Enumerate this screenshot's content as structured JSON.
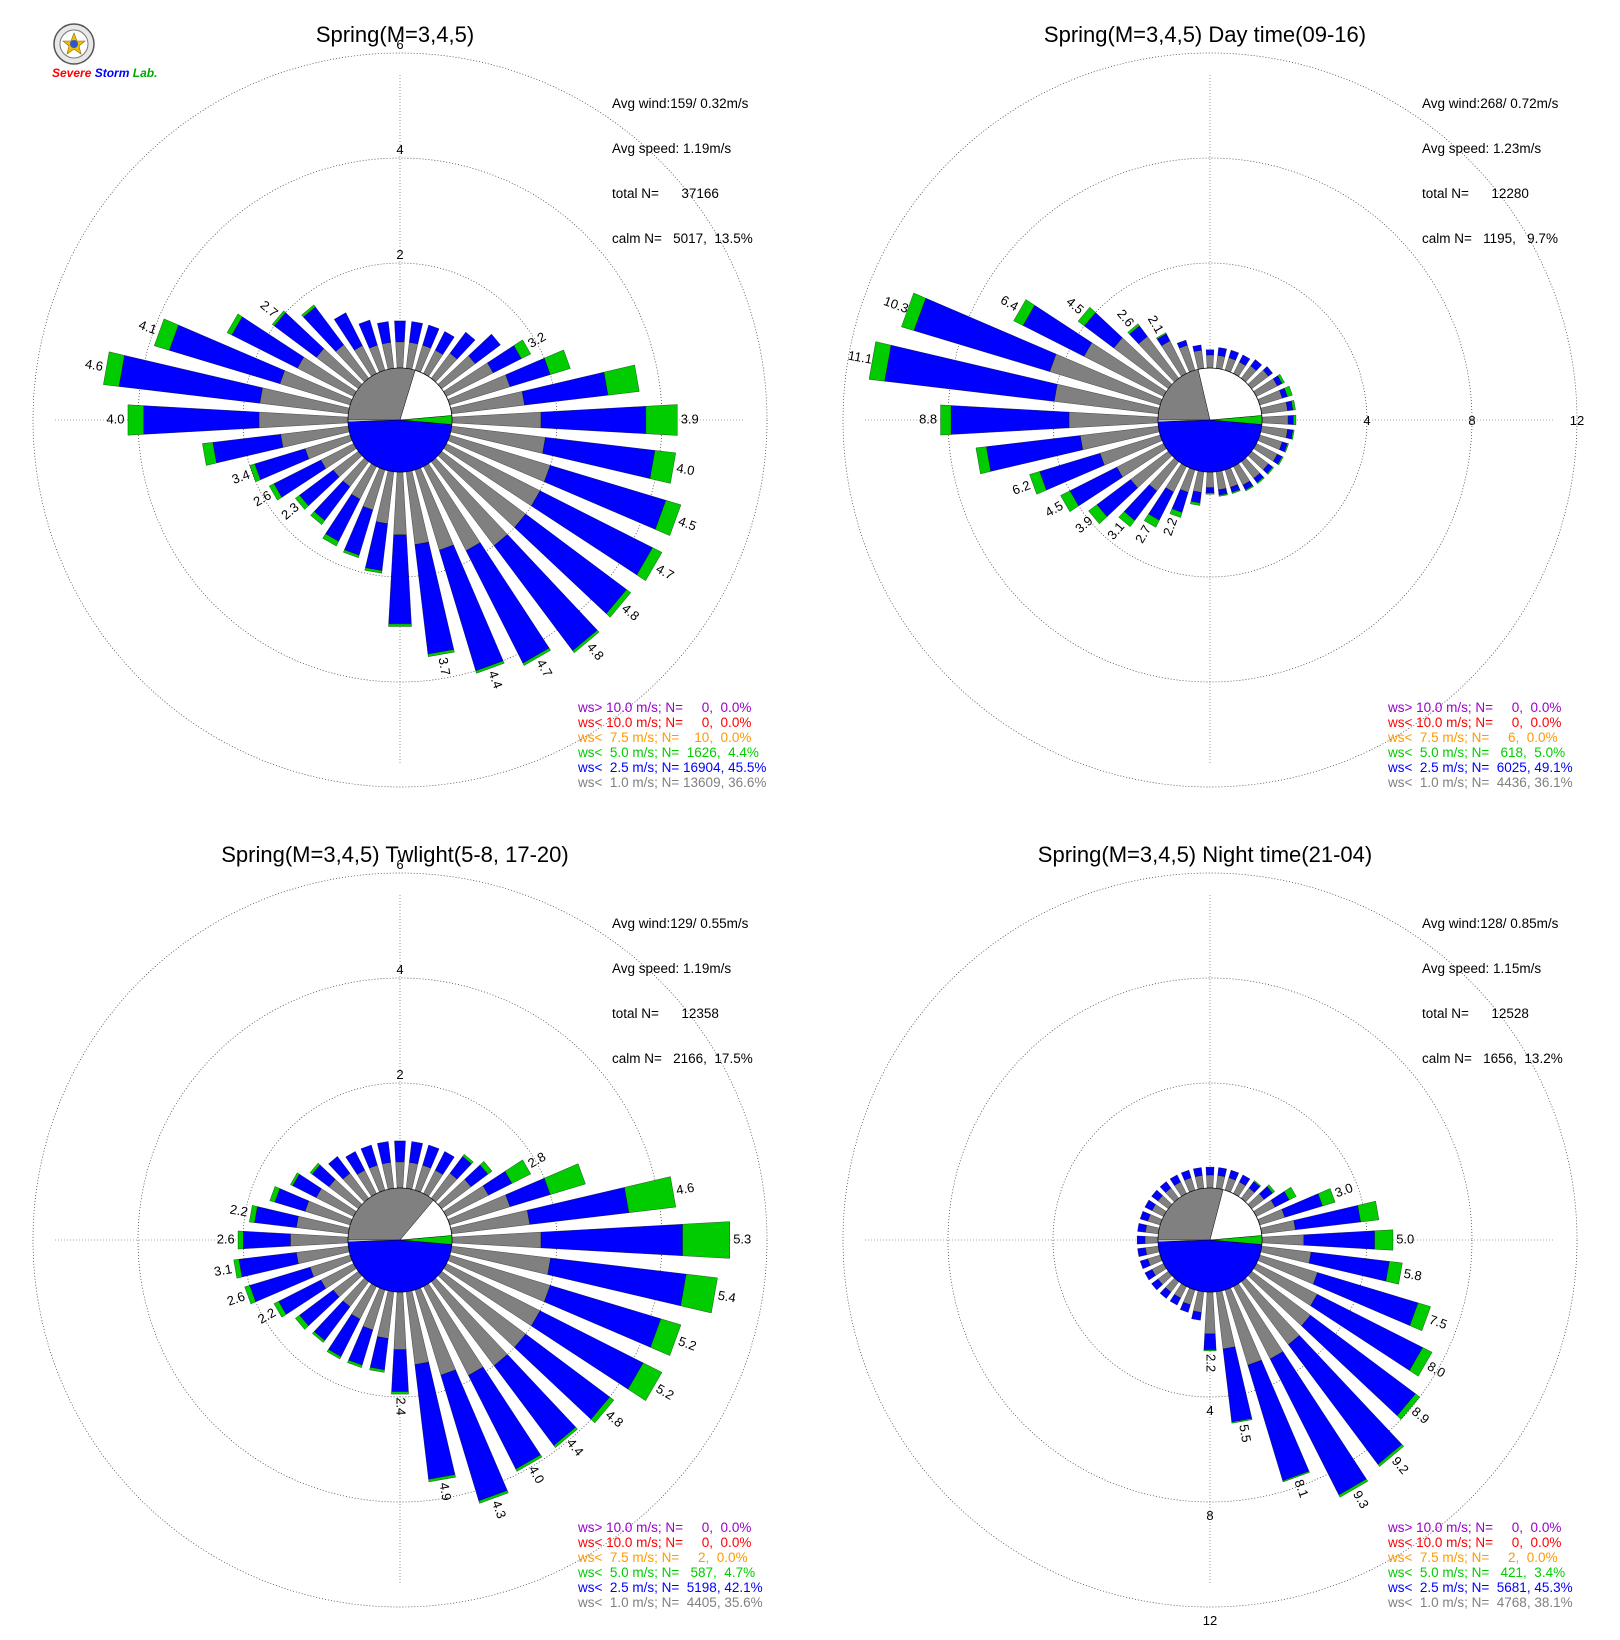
{
  "logo": {
    "text_a": "Severe",
    "text_b": "Storm",
    "text_c": "Lab."
  },
  "colors": {
    "calm_gray": "#808080",
    "band_gray": "#808080",
    "band_blue": "#0000ff",
    "band_green": "#00cc00",
    "band_orange": "#ff9900",
    "band_red": "#ff0000",
    "band_purple": "#9900cc"
  },
  "chart_data": [
    {
      "type": "wind-rose",
      "title": "Spring(M=3,4,5)",
      "stats": [
        "Avg wind:159/ 0.32m/s",
        "Avg speed: 1.19m/s",
        "total N=      37166",
        "calm N=   5017,  13.5%"
      ],
      "rings": [
        2,
        4,
        6
      ],
      "ring_labels": [
        "2",
        "4",
        "6"
      ],
      "ring_label_position": "top",
      "calm_pct": 13.5,
      "directions_deg": [
        0,
        10,
        20,
        30,
        40,
        50,
        60,
        70,
        80,
        90,
        100,
        110,
        120,
        130,
        140,
        150,
        160,
        170,
        180,
        190,
        200,
        210,
        220,
        230,
        240,
        250,
        260,
        270,
        280,
        290,
        300,
        310,
        320,
        330,
        340,
        350
      ],
      "bands": [
        {
          "name": "ws<  1.0 m/s",
          "color": "#808080",
          "values": [
            0.5,
            0.5,
            0.5,
            0.5,
            0.6,
            0.8,
            1.0,
            1.2,
            1.4,
            1.7,
            1.8,
            2.0,
            2.0,
            2.0,
            2.0,
            1.8,
            1.6,
            1.4,
            1.2,
            1.0,
            0.8,
            0.7,
            0.6,
            0.6,
            0.7,
            0.9,
            1.3,
            1.7,
            1.7,
            1.4,
            1.2,
            1.0,
            0.8,
            0.6,
            0.5,
            0.5
          ]
        },
        {
          "name": "ws<  2.5 m/s",
          "color": "#0000ff",
          "values": [
            0.4,
            0.4,
            0.4,
            0.4,
            0.5,
            0.6,
            0.6,
            0.8,
            1.6,
            2.0,
            2.1,
            2.3,
            2.4,
            2.4,
            2.5,
            2.4,
            2.4,
            2.1,
            1.7,
            0.9,
            0.9,
            0.9,
            0.8,
            0.8,
            1.0,
            1.0,
            1.3,
            2.2,
            2.7,
            2.2,
            1.4,
            1.0,
            0.9,
            0.7,
            0.5,
            0.4
          ]
        },
        {
          "name": "ws<  5.0 m/s",
          "color": "#00cc00",
          "values": [
            0.0,
            0.0,
            0.0,
            0.0,
            0.0,
            0.0,
            0.2,
            0.4,
            0.6,
            0.6,
            0.4,
            0.3,
            0.2,
            0.1,
            0.05,
            0.05,
            0.05,
            0.05,
            0.05,
            0.05,
            0.05,
            0.1,
            0.1,
            0.1,
            0.1,
            0.1,
            0.2,
            0.3,
            0.3,
            0.3,
            0.1,
            0.05,
            0.05,
            0.0,
            0.0,
            0.0
          ]
        }
      ],
      "bar_labels": {
        "60": "3.2",
        "90": "3.9",
        "100": "4.0",
        "110": "4.5",
        "120": "4.7",
        "130": "4.8",
        "140": "4.8",
        "150": "4.7",
        "160": "4.4",
        "170": "3.7",
        "230": "2.3",
        "240": "2.6",
        "250": "3.4",
        "270": "4.0",
        "280": "4.6",
        "290": "4.1",
        "310": "2.7"
      },
      "legend": [
        {
          "text": "ws> 10.0 m/s; N=     0,  0.0%",
          "color": "#9900cc"
        },
        {
          "text": "ws< 10.0 m/s; N=     0,  0.0%",
          "color": "#ff0000"
        },
        {
          "text": "ws<  7.5 m/s; N=    10,  0.0%",
          "color": "#ff9900"
        },
        {
          "text": "ws<  5.0 m/s; N=  1626,  4.4%",
          "color": "#00cc00"
        },
        {
          "text": "ws<  2.5 m/s; N= 16904, 45.5%",
          "color": "#0000ff"
        },
        {
          "text": "ws<  1.0 m/s; N= 13609, 36.6%",
          "color": "#808080"
        }
      ]
    },
    {
      "type": "wind-rose",
      "title": "Spring(M=3,4,5) Day time(09-16)",
      "stats": [
        "Avg wind:268/ 0.72m/s",
        "Avg speed: 1.23m/s",
        "total N=      12280",
        "calm N=   1195,   9.7%"
      ],
      "rings": [
        4,
        8,
        12
      ],
      "ring_labels": [
        "4",
        "8",
        "12"
      ],
      "ring_label_position": "right",
      "calm_pct": 9.7,
      "directions_deg": [
        0,
        10,
        20,
        30,
        40,
        50,
        60,
        70,
        80,
        90,
        100,
        110,
        120,
        130,
        140,
        150,
        160,
        170,
        180,
        190,
        200,
        210,
        220,
        230,
        240,
        250,
        260,
        270,
        280,
        290,
        300,
        310,
        320,
        330,
        340,
        350
      ],
      "bands": [
        {
          "name": "ws<  1.0 m/s",
          "color": "#808080",
          "values": [
            0.5,
            0.5,
            0.5,
            0.5,
            0.6,
            0.8,
            0.9,
            0.9,
            1.0,
            1.0,
            1.0,
            0.9,
            0.9,
            0.8,
            0.8,
            0.8,
            0.7,
            0.7,
            0.6,
            0.8,
            0.9,
            1.1,
            1.4,
            1.8,
            2.0,
            2.4,
            3.0,
            3.4,
            4.0,
            4.4,
            3.4,
            2.6,
            2.0,
            1.4,
            1.0,
            0.7
          ]
        },
        {
          "name": "ws<  2.5 m/s",
          "color": "#0000ff",
          "values": [
            0.2,
            0.3,
            0.3,
            0.3,
            0.3,
            0.2,
            0.2,
            0.2,
            0.2,
            0.2,
            0.2,
            0.2,
            0.2,
            0.2,
            0.2,
            0.2,
            0.2,
            0.2,
            0.2,
            0.4,
            0.8,
            1.2,
            1.4,
            1.6,
            2.0,
            2.4,
            3.6,
            4.5,
            6.5,
            5.4,
            2.6,
            1.4,
            0.5,
            0.3,
            0.2,
            0.2
          ]
        },
        {
          "name": "ws<  5.0 m/s",
          "color": "#00cc00",
          "values": [
            0.0,
            0.0,
            0.0,
            0.0,
            0.0,
            0.0,
            0.1,
            0.2,
            0.1,
            0.1,
            0.05,
            0.05,
            0.05,
            0.05,
            0.05,
            0.05,
            0.05,
            0.05,
            0.05,
            0.1,
            0.2,
            0.3,
            0.3,
            0.4,
            0.4,
            0.4,
            0.4,
            0.4,
            0.6,
            0.5,
            0.4,
            0.3,
            0.1,
            0.05,
            0.0,
            0.0
          ]
        }
      ],
      "bar_labels": {
        "200": "2.2",
        "210": "2.7",
        "220": "3.1",
        "230": "3.9",
        "240": "4.5",
        "250": "6.2",
        "270": "8.8",
        "280": "11.1",
        "290": "10.3",
        "300": "6.4",
        "310": "4.5",
        "320": "2.6",
        "330": "2.1"
      },
      "legend": [
        {
          "text": "ws> 10.0 m/s; N=     0,  0.0%",
          "color": "#9900cc"
        },
        {
          "text": "ws< 10.0 m/s; N=     0,  0.0%",
          "color": "#ff0000"
        },
        {
          "text": "ws<  7.5 m/s; N=     6,  0.0%",
          "color": "#ff9900"
        },
        {
          "text": "ws<  5.0 m/s; N=   618,  5.0%",
          "color": "#00cc00"
        },
        {
          "text": "ws<  2.5 m/s; N=  6025, 49.1%",
          "color": "#0000ff"
        },
        {
          "text": "ws<  1.0 m/s; N=  4436, 36.1%",
          "color": "#808080"
        }
      ]
    },
    {
      "type": "wind-rose",
      "title": "Spring(M=3,4,5) Twlight(5-8, 17-20)",
      "stats": [
        "Avg wind:129/ 0.55m/s",
        "Avg speed: 1.19m/s",
        "total N=      12358",
        "calm N=   2166,  17.5%"
      ],
      "rings": [
        2,
        4,
        6
      ],
      "ring_labels": [
        "2",
        "4",
        "6"
      ],
      "ring_label_position": "top",
      "calm_pct": 17.5,
      "directions_deg": [
        0,
        10,
        20,
        30,
        40,
        50,
        60,
        70,
        80,
        90,
        100,
        110,
        120,
        130,
        140,
        150,
        160,
        170,
        180,
        190,
        200,
        210,
        220,
        230,
        240,
        250,
        260,
        270,
        280,
        290,
        300,
        310,
        320,
        330,
        340,
        350
      ],
      "bands": [
        {
          "name": "ws<  1.0 m/s",
          "color": "#808080",
          "values": [
            0.5,
            0.5,
            0.5,
            0.5,
            0.6,
            0.7,
            0.9,
            1.2,
            1.5,
            1.7,
            1.9,
            2.0,
            2.0,
            2.0,
            2.0,
            1.9,
            1.7,
            1.4,
            1.1,
            0.9,
            0.8,
            0.7,
            0.6,
            0.6,
            0.7,
            0.8,
            1.0,
            1.1,
            1.0,
            0.9,
            0.8,
            0.7,
            0.6,
            0.5,
            0.5,
            0.5
          ]
        },
        {
          "name": "ws<  2.5 m/s",
          "color": "#0000ff",
          "values": [
            0.4,
            0.4,
            0.4,
            0.4,
            0.4,
            0.4,
            0.5,
            0.8,
            1.9,
            2.7,
            2.6,
            2.2,
            2.2,
            2.0,
            1.9,
            2.0,
            2.5,
            2.2,
            0.8,
            0.6,
            0.7,
            0.8,
            0.8,
            0.8,
            0.9,
            1.2,
            1.1,
            0.9,
            0.8,
            0.6,
            0.5,
            0.4,
            0.4,
            0.4,
            0.4,
            0.4
          ]
        },
        {
          "name": "ws<  5.0 m/s",
          "color": "#00cc00",
          "values": [
            0.0,
            0.0,
            0.0,
            0.0,
            0.05,
            0.1,
            0.4,
            0.7,
            0.9,
            0.9,
            0.6,
            0.4,
            0.4,
            0.1,
            0.05,
            0.05,
            0.05,
            0.05,
            0.05,
            0.05,
            0.05,
            0.05,
            0.05,
            0.1,
            0.1,
            0.1,
            0.1,
            0.1,
            0.1,
            0.1,
            0.05,
            0.05,
            0.0,
            0.0,
            0.0,
            0.0
          ]
        }
      ],
      "bar_labels": {
        "60": "2.8",
        "80": "4.6",
        "90": "5.3",
        "100": "5.4",
        "110": "5.2",
        "120": "5.2",
        "130": "4.8",
        "140": "4.4",
        "150": "4.0",
        "160": "4.3",
        "170": "4.9",
        "180": "2.4",
        "240": "2.2",
        "250": "2.6",
        "260": "3.1",
        "270": "2.6",
        "280": "2.2"
      },
      "legend": [
        {
          "text": "ws> 10.0 m/s; N=     0,  0.0%",
          "color": "#9900cc"
        },
        {
          "text": "ws< 10.0 m/s; N=     0,  0.0%",
          "color": "#ff0000"
        },
        {
          "text": "ws<  7.5 m/s; N=     2,  0.0%",
          "color": "#ff9900"
        },
        {
          "text": "ws<  5.0 m/s; N=   587,  4.7%",
          "color": "#00cc00"
        },
        {
          "text": "ws<  2.5 m/s; N=  5198, 42.1%",
          "color": "#0000ff"
        },
        {
          "text": "ws<  1.0 m/s; N=  4405, 35.6%",
          "color": "#808080"
        }
      ]
    },
    {
      "type": "wind-rose",
      "title": "Spring(M=3,4,5) Night time(21-04)",
      "stats": [
        "Avg wind:128/ 0.85m/s",
        "Avg speed: 1.15m/s",
        "total N=      12528",
        "calm N=   1656,  13.2%"
      ],
      "rings": [
        4,
        8,
        12
      ],
      "ring_labels": [
        "4",
        "8",
        "12"
      ],
      "ring_label_position": "bottom",
      "calm_pct": 13.2,
      "directions_deg": [
        0,
        10,
        20,
        30,
        40,
        50,
        60,
        70,
        80,
        90,
        100,
        110,
        120,
        130,
        140,
        150,
        160,
        170,
        180,
        190,
        200,
        210,
        220,
        230,
        240,
        250,
        260,
        270,
        280,
        290,
        300,
        310,
        320,
        330,
        340,
        350
      ],
      "bands": [
        {
          "name": "ws<  1.0 m/s",
          "color": "#808080",
          "values": [
            0.5,
            0.5,
            0.5,
            0.5,
            0.5,
            0.6,
            0.8,
            1.0,
            1.3,
            1.6,
            1.9,
            2.3,
            2.6,
            2.8,
            3.0,
            3.1,
            3.0,
            2.2,
            1.6,
            0.8,
            0.6,
            0.5,
            0.5,
            0.5,
            0.5,
            0.5,
            0.5,
            0.5,
            0.5,
            0.5,
            0.5,
            0.5,
            0.5,
            0.5,
            0.5,
            0.5
          ]
        },
        {
          "name": "ws<  2.5 m/s",
          "color": "#0000ff",
          "values": [
            0.3,
            0.3,
            0.3,
            0.3,
            0.3,
            0.4,
            0.6,
            1.5,
            2.5,
            2.7,
            3.0,
            4.0,
            4.5,
            5.0,
            5.7,
            5.8,
            4.6,
            2.8,
            0.6,
            0.3,
            0.3,
            0.3,
            0.3,
            0.3,
            0.3,
            0.3,
            0.3,
            0.3,
            0.3,
            0.3,
            0.3,
            0.3,
            0.3,
            0.3,
            0.3,
            0.3
          ]
        },
        {
          "name": "ws<  5.0 m/s",
          "color": "#00cc00",
          "values": [
            0.0,
            0.0,
            0.0,
            0.0,
            0.05,
            0.1,
            0.3,
            0.5,
            0.7,
            0.7,
            0.5,
            0.5,
            0.4,
            0.2,
            0.1,
            0.1,
            0.05,
            0.05,
            0.05,
            0.0,
            0.0,
            0.0,
            0.0,
            0.0,
            0.0,
            0.0,
            0.0,
            0.0,
            0.0,
            0.0,
            0.0,
            0.0,
            0.0,
            0.0,
            0.0,
            0.0
          ]
        }
      ],
      "bar_labels": {
        "70": "3.0",
        "90": "5.0",
        "100": "5.8",
        "110": "7.5",
        "120": "8.0",
        "130": "8.9",
        "140": "9.2",
        "150": "9.3",
        "160": "8.1",
        "170": "5.5",
        "180": "2.2"
      },
      "legend": [
        {
          "text": "ws> 10.0 m/s; N=     0,  0.0%",
          "color": "#9900cc"
        },
        {
          "text": "ws< 10.0 m/s; N=     0,  0.0%",
          "color": "#ff0000"
        },
        {
          "text": "ws<  7.5 m/s; N=     2,  0.0%",
          "color": "#ff9900"
        },
        {
          "text": "ws<  5.0 m/s; N=   421,  3.4%",
          "color": "#00cc00"
        },
        {
          "text": "ws<  2.5 m/s; N=  5681, 45.3%",
          "color": "#0000ff"
        },
        {
          "text": "ws<  1.0 m/s; N=  4768, 38.1%",
          "color": "#808080"
        }
      ]
    }
  ]
}
